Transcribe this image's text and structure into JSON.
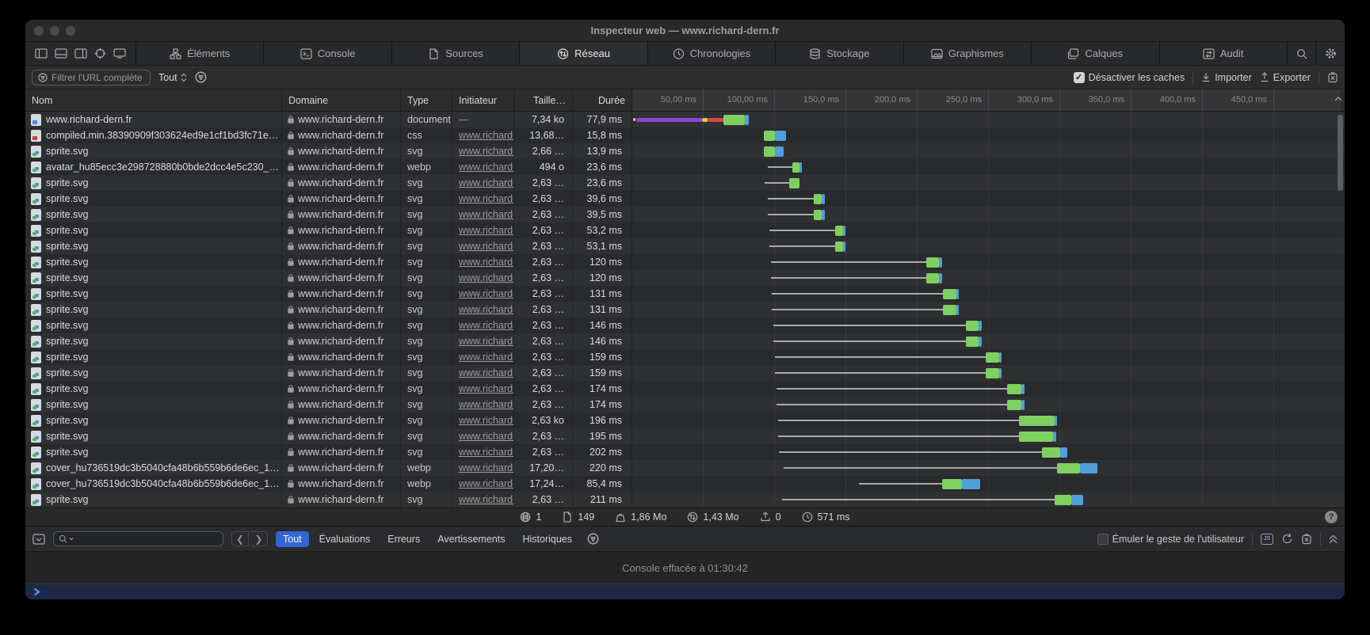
{
  "window": {
    "title": "Inspecteur web — www.richard-dern.fr"
  },
  "colors": {
    "bar_green": "#7ed05f",
    "bar_blue": "#4f9fdb",
    "bar_purple": "#8b45dd",
    "bar_yellow": "#e7c64a",
    "bar_red": "#d64a41",
    "pill_active_blue": "#3365d4",
    "prompt_bg": "#1d2844",
    "prompt_chevron": "#5f8dfb"
  },
  "tabs": [
    {
      "label": "Éléments",
      "icon": "elements-icon",
      "active": false
    },
    {
      "label": "Console",
      "icon": "console-icon",
      "active": false
    },
    {
      "label": "Sources",
      "icon": "sources-icon",
      "active": false
    },
    {
      "label": "Réseau",
      "icon": "network-icon",
      "active": true
    },
    {
      "label": "Chronologies",
      "icon": "timelines-icon",
      "active": false
    },
    {
      "label": "Stockage",
      "icon": "storage-icon",
      "active": false
    },
    {
      "label": "Graphismes",
      "icon": "graphics-icon",
      "active": false
    },
    {
      "label": "Calques",
      "icon": "layers-icon",
      "active": false
    },
    {
      "label": "Audit",
      "icon": "audit-icon",
      "active": false
    }
  ],
  "filterbar": {
    "filter_placeholder": "Filtrer l'URL complète",
    "filter_value": "",
    "scope_selected": "Tout",
    "disable_caches": {
      "label": "Désactiver les caches",
      "checked": true
    },
    "import_label": "Importer",
    "export_label": "Exporter"
  },
  "table": {
    "columns": {
      "name": "Nom",
      "domain": "Domaine",
      "type": "Type",
      "initiator": "Initiateur",
      "size": "Taille…",
      "duration": "Durée"
    },
    "timeline_ticks": [
      "50,00 ms",
      "100,00 ms",
      "150,0 ms",
      "200,0 ms",
      "250,0 ms",
      "300,0 ms",
      "350,0 ms",
      "400,0 ms",
      "450,0 ms"
    ],
    "rows": [
      {
        "name": "www.richard-dern.fr",
        "ficon": "doc",
        "domain": "www.richard-dern.fr",
        "type": "document",
        "initiator": "—",
        "initiator_link": false,
        "size": "7,34 ko",
        "duration": "77,9 ms",
        "wf": {
          "queue": [
            0.5,
            2.5
          ],
          "purple": [
            3,
            49
          ],
          "yellow": [
            49,
            53
          ],
          "red": [
            53,
            64
          ],
          "green": [
            64,
            79
          ],
          "blue": [
            79,
            81.5
          ]
        }
      },
      {
        "name": "compiled.min.38390909f303624ed9e1cf1bd3fc71e…",
        "ficon": "css",
        "domain": "www.richard-dern.fr",
        "type": "css",
        "initiator": "www.richard-d…",
        "initiator_link": true,
        "size": "13,68…",
        "duration": "15,8 ms",
        "wf": {
          "green": [
            92,
            100
          ],
          "blue": [
            100,
            108
          ]
        }
      },
      {
        "name": "sprite.svg",
        "ficon": "img",
        "domain": "www.richard-dern.fr",
        "type": "svg",
        "initiator": "www.richard-d…",
        "initiator_link": true,
        "size": "2,66 …",
        "duration": "13,9 ms",
        "wf": {
          "green": [
            92,
            100
          ],
          "blue": [
            100,
            106
          ]
        }
      },
      {
        "name": "avatar_hu85ecc3e298728880b0bde2dcc4e5c230_…",
        "ficon": "img",
        "domain": "www.richard-dern.fr",
        "type": "webp",
        "initiator": "www.richard-d…",
        "initiator_link": true,
        "size": "494 o",
        "duration": "23,6 ms",
        "wf": {
          "line": [
            95,
            112
          ],
          "green": [
            112,
            117
          ],
          "blue": [
            117,
            119
          ]
        }
      },
      {
        "name": "sprite.svg",
        "ficon": "img",
        "domain": "www.richard-dern.fr",
        "type": "svg",
        "initiator": "www.richard-d…",
        "initiator_link": true,
        "size": "2,63 …",
        "duration": "23,6 ms",
        "wf": {
          "line": [
            93,
            110
          ],
          "green": [
            110,
            117
          ]
        }
      },
      {
        "name": "sprite.svg",
        "ficon": "img",
        "domain": "www.richard-dern.fr",
        "type": "svg",
        "initiator": "www.richard-d…",
        "initiator_link": true,
        "size": "2,63 …",
        "duration": "39,6 ms",
        "wf": {
          "line": [
            95,
            127
          ],
          "green": [
            127,
            133
          ],
          "blue": [
            133,
            135
          ]
        }
      },
      {
        "name": "sprite.svg",
        "ficon": "img",
        "domain": "www.richard-dern.fr",
        "type": "svg",
        "initiator": "www.richard-d…",
        "initiator_link": true,
        "size": "2,63 …",
        "duration": "39,5 ms",
        "wf": {
          "line": [
            95,
            127
          ],
          "green": [
            127,
            133
          ],
          "blue": [
            133,
            135
          ]
        }
      },
      {
        "name": "sprite.svg",
        "ficon": "img",
        "domain": "www.richard-dern.fr",
        "type": "svg",
        "initiator": "www.richard-d…",
        "initiator_link": true,
        "size": "2,63 …",
        "duration": "53,2 ms",
        "wf": {
          "line": [
            96,
            142
          ],
          "green": [
            142,
            148
          ],
          "blue": [
            148,
            149.5
          ]
        }
      },
      {
        "name": "sprite.svg",
        "ficon": "img",
        "domain": "www.richard-dern.fr",
        "type": "svg",
        "initiator": "www.richard-d…",
        "initiator_link": true,
        "size": "2,63 …",
        "duration": "53,1 ms",
        "wf": {
          "line": [
            96,
            142
          ],
          "green": [
            142,
            148
          ],
          "blue": [
            148,
            149.4
          ]
        }
      },
      {
        "name": "sprite.svg",
        "ficon": "img",
        "domain": "www.richard-dern.fr",
        "type": "svg",
        "initiator": "www.richard-d…",
        "initiator_link": true,
        "size": "2,63 …",
        "duration": "120 ms",
        "wf": {
          "line": [
            97,
            206
          ],
          "green": [
            206,
            215
          ],
          "blue": [
            215,
            217
          ]
        }
      },
      {
        "name": "sprite.svg",
        "ficon": "img",
        "domain": "www.richard-dern.fr",
        "type": "svg",
        "initiator": "www.richard-d…",
        "initiator_link": true,
        "size": "2,63 …",
        "duration": "120 ms",
        "wf": {
          "line": [
            97,
            206
          ],
          "green": [
            206,
            215
          ],
          "blue": [
            215,
            217
          ]
        }
      },
      {
        "name": "sprite.svg",
        "ficon": "img",
        "domain": "www.richard-dern.fr",
        "type": "svg",
        "initiator": "www.richard-d…",
        "initiator_link": true,
        "size": "2,63 …",
        "duration": "131 ms",
        "wf": {
          "line": [
            98,
            218
          ],
          "green": [
            218,
            227
          ],
          "blue": [
            227,
            229
          ]
        }
      },
      {
        "name": "sprite.svg",
        "ficon": "img",
        "domain": "www.richard-dern.fr",
        "type": "svg",
        "initiator": "www.richard-d…",
        "initiator_link": true,
        "size": "2,63 …",
        "duration": "131 ms",
        "wf": {
          "line": [
            98,
            218
          ],
          "green": [
            218,
            227
          ],
          "blue": [
            227,
            229
          ]
        }
      },
      {
        "name": "sprite.svg",
        "ficon": "img",
        "domain": "www.richard-dern.fr",
        "type": "svg",
        "initiator": "www.richard-d…",
        "initiator_link": true,
        "size": "2,63 …",
        "duration": "146 ms",
        "wf": {
          "line": [
            99,
            234
          ],
          "green": [
            234,
            243
          ],
          "blue": [
            243,
            245
          ]
        }
      },
      {
        "name": "sprite.svg",
        "ficon": "img",
        "domain": "www.richard-dern.fr",
        "type": "svg",
        "initiator": "www.richard-d…",
        "initiator_link": true,
        "size": "2,63 …",
        "duration": "146 ms",
        "wf": {
          "line": [
            99,
            234
          ],
          "green": [
            234,
            243
          ],
          "blue": [
            243,
            245
          ]
        }
      },
      {
        "name": "sprite.svg",
        "ficon": "img",
        "domain": "www.richard-dern.fr",
        "type": "svg",
        "initiator": "www.richard-d…",
        "initiator_link": true,
        "size": "2,63 …",
        "duration": "159 ms",
        "wf": {
          "line": [
            100,
            248
          ],
          "green": [
            248,
            257
          ],
          "blue": [
            257,
            259
          ]
        }
      },
      {
        "name": "sprite.svg",
        "ficon": "img",
        "domain": "www.richard-dern.fr",
        "type": "svg",
        "initiator": "www.richard-d…",
        "initiator_link": true,
        "size": "2,63 …",
        "duration": "159 ms",
        "wf": {
          "line": [
            100,
            248
          ],
          "green": [
            248,
            257
          ],
          "blue": [
            257,
            259
          ]
        }
      },
      {
        "name": "sprite.svg",
        "ficon": "img",
        "domain": "www.richard-dern.fr",
        "type": "svg",
        "initiator": "www.richard-d…",
        "initiator_link": true,
        "size": "2,63 …",
        "duration": "174 ms",
        "wf": {
          "line": [
            101,
            263
          ],
          "green": [
            263,
            273
          ],
          "blue": [
            273,
            275
          ]
        }
      },
      {
        "name": "sprite.svg",
        "ficon": "img",
        "domain": "www.richard-dern.fr",
        "type": "svg",
        "initiator": "www.richard-d…",
        "initiator_link": true,
        "size": "2,63 …",
        "duration": "174 ms",
        "wf": {
          "line": [
            101,
            263
          ],
          "green": [
            263,
            273
          ],
          "blue": [
            273,
            275
          ]
        }
      },
      {
        "name": "sprite.svg",
        "ficon": "img",
        "domain": "www.richard-dern.fr",
        "type": "svg",
        "initiator": "www.richard-d…",
        "initiator_link": true,
        "size": "2,63 ko",
        "duration": "196 ms",
        "wf": {
          "line": [
            102,
            271
          ],
          "green": [
            271,
            296
          ],
          "blue": [
            296,
            298
          ]
        }
      },
      {
        "name": "sprite.svg",
        "ficon": "img",
        "domain": "www.richard-dern.fr",
        "type": "svg",
        "initiator": "www.richard-d…",
        "initiator_link": true,
        "size": "2,63 …",
        "duration": "195 ms",
        "wf": {
          "line": [
            102,
            271
          ],
          "green": [
            271,
            295
          ],
          "blue": [
            295,
            297
          ]
        }
      },
      {
        "name": "sprite.svg",
        "ficon": "img",
        "domain": "www.richard-dern.fr",
        "type": "svg",
        "initiator": "www.richard-d…",
        "initiator_link": true,
        "size": "2,63 …",
        "duration": "202 ms",
        "wf": {
          "line": [
            103,
            287
          ],
          "green": [
            287,
            300
          ],
          "blue": [
            300,
            305
          ]
        }
      },
      {
        "name": "cover_hu736519dc3b5040cfa48b6b559b6de6ec_1…",
        "ficon": "img",
        "domain": "www.richard-dern.fr",
        "type": "webp",
        "initiator": "www.richard-d…",
        "initiator_link": true,
        "size": "17,20…",
        "duration": "220 ms",
        "wf": {
          "line": [
            106,
            298
          ],
          "green": [
            298,
            314
          ],
          "blue": [
            314,
            326
          ]
        }
      },
      {
        "name": "cover_hu736519dc3b5040cfa48b6b559b6de6ec_1…",
        "ficon": "img",
        "domain": "www.richard-dern.fr",
        "type": "webp",
        "initiator": "www.richard-d…",
        "initiator_link": true,
        "size": "17,24…",
        "duration": "85,4 ms",
        "wf": {
          "line": [
            159,
            217
          ],
          "green": [
            217,
            231
          ],
          "blue": [
            231,
            244
          ]
        }
      },
      {
        "name": "sprite.svg",
        "ficon": "img",
        "domain": "www.richard-dern.fr",
        "type": "svg",
        "initiator": "www.richard-d…",
        "initiator_link": true,
        "size": "2,63 …",
        "duration": "211 ms",
        "wf": {
          "line": [
            105,
            296
          ],
          "green": [
            296,
            308
          ],
          "blue": [
            308,
            316
          ]
        }
      }
    ]
  },
  "statusbar": {
    "items": [
      {
        "icon": "globe-icon",
        "value": "1"
      },
      {
        "icon": "page-icon",
        "value": "149"
      },
      {
        "icon": "weight-icon",
        "value": "1,86 Mo"
      },
      {
        "icon": "transfer-icon",
        "value": "1,43 Mo"
      },
      {
        "icon": "upload-icon",
        "value": "0"
      },
      {
        "icon": "clock-icon",
        "value": "571 ms"
      }
    ],
    "help_label": "?"
  },
  "console": {
    "search_value": "",
    "search_placeholder": "",
    "scopes": [
      "Tout",
      "Évaluations",
      "Erreurs",
      "Avertissements",
      "Historiques"
    ],
    "active_scope": "Tout",
    "emulate": {
      "label": "Émuler le geste de l'utilisateur",
      "checked": false
    },
    "cleared_message": "Console effacée à 01:30:42"
  }
}
